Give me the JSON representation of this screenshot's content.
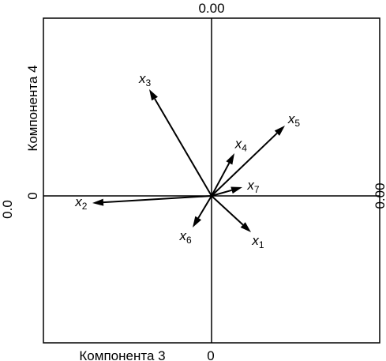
{
  "chart_data": {
    "type": "biplot",
    "xlabel": "Компонента 3",
    "ylabel": "Компонента 4",
    "top_label": "0.00",
    "left_label": "0.0",
    "right_label": "0.00",
    "x_zero_label": "0",
    "y_zero_label": "0",
    "xlim": [
      -1,
      1
    ],
    "ylim": [
      -1,
      1
    ],
    "grid": false,
    "vectors": [
      {
        "var": "x",
        "sub": "1",
        "x": 0.25,
        "y": -0.23
      },
      {
        "var": "x",
        "sub": "2",
        "x": -0.755,
        "y": -0.045
      },
      {
        "var": "x",
        "sub": "3",
        "x": -0.395,
        "y": 0.675
      },
      {
        "var": "x",
        "sub": "4",
        "x": 0.145,
        "y": 0.27
      },
      {
        "var": "x",
        "sub": "5",
        "x": 0.465,
        "y": 0.445
      },
      {
        "var": "x",
        "sub": "6",
        "x": -0.12,
        "y": -0.2
      },
      {
        "var": "x",
        "sub": "7",
        "x": 0.195,
        "y": 0.055
      }
    ]
  }
}
